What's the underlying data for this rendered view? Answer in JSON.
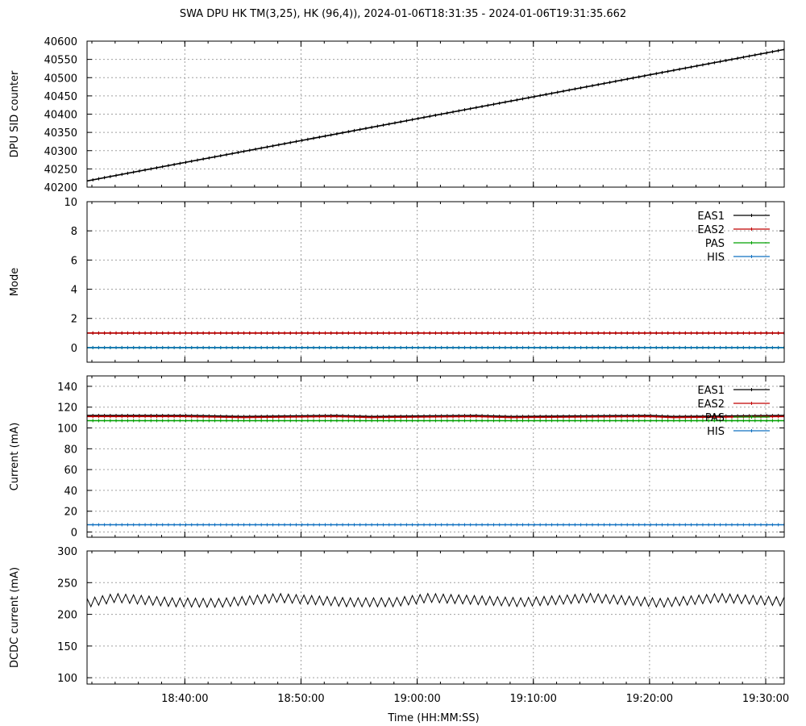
{
  "title": "SWA DPU HK TM(3,25), HK (96,4)),  2024-01-06T18:31:35 - 2024-01-06T19:31:35.662",
  "x_axis": {
    "label": "Time (HH:MM:SS)",
    "range": [
      "18:31:35",
      "19:31:35.662"
    ],
    "tick_labels": [
      "18:40:00",
      "18:50:00",
      "19:00:00",
      "19:10:00",
      "19:20:00",
      "19:30:00"
    ]
  },
  "colors": {
    "EAS1": "#000000",
    "EAS2": "#c00000",
    "PAS": "#00a000",
    "HIS": "#1070c0"
  },
  "chart_data": [
    {
      "type": "line",
      "ylabel": "DPU SID counter",
      "ylim": [
        40200,
        40600
      ],
      "yticks": [
        40200,
        40250,
        40300,
        40350,
        40400,
        40450,
        40500,
        40550,
        40600
      ],
      "grid": true,
      "series": [
        {
          "x": [
            "18:31:35",
            "19:31:35"
          ],
          "values": [
            40217,
            40577
          ]
        }
      ]
    },
    {
      "type": "line",
      "ylabel": "Mode",
      "ylim": [
        -1,
        10
      ],
      "yticks": [
        0,
        2,
        4,
        6,
        8,
        10
      ],
      "grid": true,
      "legend": "top-right",
      "series": [
        {
          "name": "EAS1",
          "x": [
            "18:31:35",
            "19:31:35"
          ],
          "values": [
            1,
            1
          ]
        },
        {
          "name": "EAS2",
          "x": [
            "18:31:35",
            "19:31:35"
          ],
          "values": [
            1,
            1
          ]
        },
        {
          "name": "PAS",
          "x": [
            "18:31:35",
            "19:31:35"
          ],
          "values": [
            0,
            0
          ]
        },
        {
          "name": "HIS",
          "x": [
            "18:31:35",
            "19:31:35"
          ],
          "values": [
            0,
            0
          ]
        }
      ]
    },
    {
      "type": "line",
      "ylabel": "Current (mA)",
      "ylim": [
        -5,
        150
      ],
      "yticks": [
        0,
        20,
        40,
        60,
        80,
        100,
        120,
        140
      ],
      "grid": true,
      "legend": "top-right",
      "series": [
        {
          "name": "EAS1",
          "x": [
            "18:31:35",
            "18:40:00",
            "18:45:00",
            "18:53:00",
            "18:56:00",
            "19:05:00",
            "19:08:00",
            "19:20:00",
            "19:22:00",
            "19:31:35"
          ],
          "values": [
            112,
            112,
            111,
            112,
            111,
            112,
            111,
            112,
            111,
            112
          ]
        },
        {
          "name": "EAS2",
          "x": [
            "18:31:35",
            "18:40:00",
            "18:45:00",
            "18:53:00",
            "18:56:00",
            "19:05:00",
            "19:08:00",
            "19:20:00",
            "19:22:00",
            "19:31:35"
          ],
          "values": [
            111,
            111,
            110,
            111,
            110,
            111,
            110,
            111,
            110,
            111
          ]
        },
        {
          "name": "PAS",
          "x": [
            "18:31:35",
            "19:31:35"
          ],
          "values": [
            107,
            107
          ]
        },
        {
          "name": "HIS",
          "x": [
            "18:31:35",
            "19:31:35"
          ],
          "values": [
            7,
            7
          ]
        }
      ]
    },
    {
      "type": "line",
      "ylabel": "DCDC current (mA)",
      "ylim": [
        90,
        300
      ],
      "yticks": [
        100,
        150,
        200,
        250,
        300
      ],
      "grid": true,
      "series": [
        {
          "x": [
            "18:31:35",
            "18:34:00",
            "18:39:00",
            "18:43:00",
            "18:48:00",
            "18:54:00",
            "18:58:00",
            "19:01:00",
            "19:09:00",
            "19:15:00",
            "19:21:00",
            "19:26:00",
            "19:31:35"
          ],
          "values": [
            218,
            226,
            219,
            218,
            226,
            219,
            219,
            226,
            219,
            226,
            218,
            226,
            220
          ]
        }
      ]
    }
  ]
}
